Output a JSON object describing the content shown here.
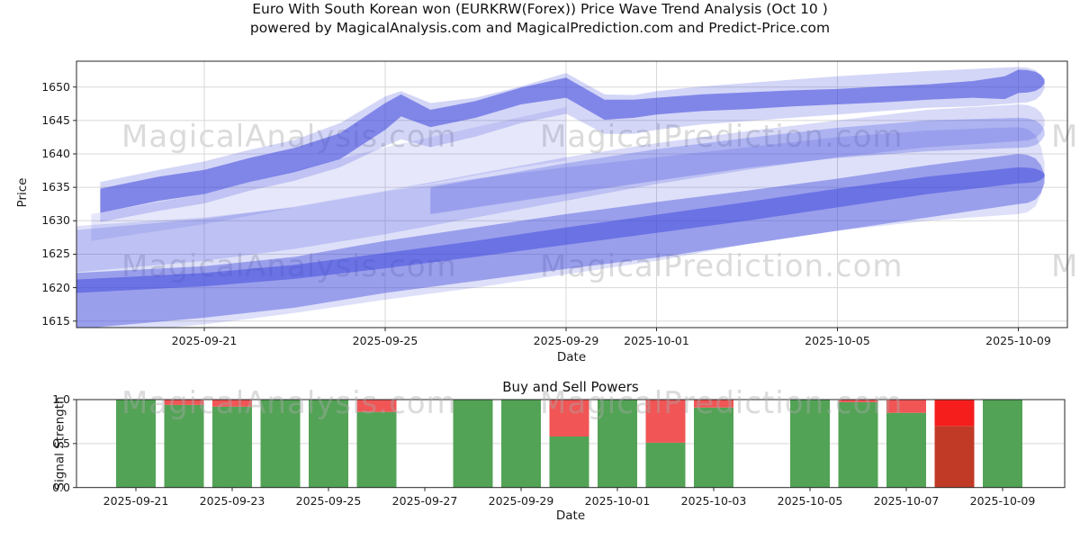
{
  "title_line1": "Euro With South Korean won (EURKRW(Forex)) Price Wave Trend Analysis (Oct 10 )",
  "title_line2": "powered by MagicalAnalysis.com and MagicalPrediction.com and Predict-Price.com",
  "watermarks": {
    "left": "MagicalAnalysis.com",
    "right": "MagicalPrediction.com",
    "partial": "M"
  },
  "colors": {
    "blue": "#3b46dc",
    "green": "#53a356",
    "red": "#f15555",
    "red_bright": "#f61d1d",
    "red_dark": "#c13a26",
    "grid": "#d8d8d8",
    "spine": "#262626",
    "watermark": "#aaaaaa"
  },
  "chart_data": [
    {
      "type": "area",
      "title": "",
      "ylabel": "Price",
      "xlabel": "Date",
      "ylim": [
        1613,
        1654
      ],
      "yticks": [
        "1615",
        "1620",
        "1625",
        "1630",
        "1635",
        "1640",
        "1645",
        "1650"
      ],
      "ytick_values": [
        1615,
        1620,
        1625,
        1630,
        1635,
        1640,
        1645,
        1650
      ],
      "xticks": [
        {
          "label": "2025-09-21",
          "d": 0
        },
        {
          "label": "2025-09-25",
          "d": 4
        },
        {
          "label": "2025-09-29",
          "d": 8
        },
        {
          "label": "2025-10-01",
          "d": 10
        },
        {
          "label": "2025-10-05",
          "d": 14
        },
        {
          "label": "2025-10-09",
          "d": 18
        }
      ],
      "grid": true,
      "note": "d = days since 2025-09-21; bands are [d, low, high] price envelopes",
      "bands": [
        {
          "name": "lower-halo",
          "opacity": 0.17,
          "cap": true,
          "points": [
            [
              -2.84,
              1612.8,
              1629.2
            ],
            [
              0,
              1614.5,
              1630.5
            ],
            [
              2,
              1616.2,
              1632
            ],
            [
              4,
              1618.2,
              1634.4
            ],
            [
              6,
              1620,
              1636.3
            ],
            [
              8,
              1622,
              1638
            ],
            [
              10,
              1624,
              1639.5
            ],
            [
              12,
              1626.5,
              1641
            ],
            [
              14,
              1628.5,
              1642.5
            ],
            [
              16,
              1630,
              1643.5
            ],
            [
              18,
              1631,
              1644
            ]
          ]
        },
        {
          "name": "lower-core",
          "opacity": 0.42,
          "cap": true,
          "points": [
            [
              -2.84,
              1613.8,
              1622.2
            ],
            [
              0,
              1615.5,
              1623.2
            ],
            [
              2,
              1617,
              1624.6
            ],
            [
              4,
              1619.2,
              1627
            ],
            [
              6,
              1621,
              1629
            ],
            [
              8,
              1622.8,
              1631
            ],
            [
              10,
              1624.5,
              1632.8
            ],
            [
              12,
              1626.5,
              1634.5
            ],
            [
              14,
              1628.5,
              1636.3
            ],
            [
              16,
              1630.5,
              1638.3
            ],
            [
              18,
              1632.5,
              1640
            ]
          ]
        },
        {
          "name": "lower-dark-stripe",
          "opacity": 0.5,
          "cap": true,
          "points": [
            [
              -2.84,
              1619.2,
              1621.2
            ],
            [
              0,
              1620.2,
              1622.2
            ],
            [
              2,
              1621.3,
              1623.4
            ],
            [
              4,
              1622.9,
              1625.2
            ],
            [
              6,
              1624.6,
              1627
            ],
            [
              8,
              1626.4,
              1629
            ],
            [
              10,
              1628.2,
              1630.9
            ],
            [
              12,
              1630,
              1632.8
            ],
            [
              14,
              1632,
              1634.8
            ],
            [
              16,
              1634,
              1636.6
            ],
            [
              18,
              1635.6,
              1638
            ]
          ]
        },
        {
          "name": "middle-light",
          "opacity": 0.2,
          "cap": true,
          "points": [
            [
              -2.84,
              1622.3,
              1628.6
            ],
            [
              0,
              1624,
              1630.3
            ],
            [
              2,
              1625.8,
              1632.1
            ],
            [
              4,
              1628,
              1634.5
            ],
            [
              6,
              1630.5,
              1637
            ],
            [
              8,
              1633,
              1639.5
            ],
            [
              10,
              1635.5,
              1641.6
            ],
            [
              12,
              1637.6,
              1643.4
            ],
            [
              14,
              1639.5,
              1645
            ],
            [
              16,
              1641,
              1646.6
            ],
            [
              18,
              1641.9,
              1647.4
            ]
          ]
        },
        {
          "name": "middle-medium",
          "opacity": 0.27,
          "cap": true,
          "points": [
            [
              5,
              1631,
              1635
            ],
            [
              6,
              1632,
              1636.2
            ],
            [
              8,
              1634,
              1638.6
            ],
            [
              10,
              1636,
              1640.7
            ],
            [
              12,
              1637.9,
              1642.4
            ],
            [
              14,
              1639.4,
              1643.9
            ],
            [
              16,
              1640.4,
              1645
            ],
            [
              18,
              1640.9,
              1645.4
            ]
          ]
        },
        {
          "name": "weave-light",
          "opacity": 0.13,
          "cap": false,
          "points": [
            [
              -2.5,
              1627,
              1631
            ],
            [
              0,
              1629.5,
              1634
            ],
            [
              2,
              1632,
              1637.5
            ],
            [
              4,
              1634.5,
              1641
            ],
            [
              5,
              1635.5,
              1642.5
            ],
            [
              6,
              1636.8,
              1644
            ],
            [
              7,
              1638,
              1645.5
            ],
            [
              8,
              1639,
              1647
            ]
          ]
        },
        {
          "name": "upper-halo",
          "opacity": 0.22,
          "cap": true,
          "points": [
            [
              -2.3,
              1629.8,
              1635.8
            ],
            [
              -1,
              1631.5,
              1637.6
            ],
            [
              0,
              1632.6,
              1638.9
            ],
            [
              1,
              1634.5,
              1640.6
            ],
            [
              2,
              1636,
              1642.1
            ],
            [
              3,
              1638,
              1644.6
            ],
            [
              4,
              1641.2,
              1648.6
            ],
            [
              4.35,
              1642.2,
              1649.4
            ],
            [
              5,
              1641,
              1647.6
            ],
            [
              6,
              1642.6,
              1648.4
            ],
            [
              7,
              1644.6,
              1650.1
            ],
            [
              8,
              1646,
              1652.1
            ],
            [
              8.85,
              1643,
              1648.9
            ],
            [
              9.5,
              1643,
              1648.8
            ],
            [
              10,
              1643.6,
              1649.4
            ],
            [
              11,
              1644.4,
              1650.1
            ],
            [
              12,
              1644.9,
              1650.6
            ],
            [
              13,
              1645.4,
              1651.1
            ],
            [
              14,
              1645.9,
              1651.6
            ],
            [
              15,
              1646.4,
              1652
            ],
            [
              16,
              1646.9,
              1652.4
            ],
            [
              17,
              1647.1,
              1652.7
            ],
            [
              18,
              1647.6,
              1653
            ]
          ]
        },
        {
          "name": "upper-core",
          "opacity": 0.55,
          "cap": true,
          "points": [
            [
              -2.3,
              1631.2,
              1634.8
            ],
            [
              -1,
              1633,
              1636.6
            ],
            [
              0,
              1634,
              1637.6
            ],
            [
              1,
              1635.8,
              1639.4
            ],
            [
              2,
              1637.3,
              1640.9
            ],
            [
              3,
              1639.2,
              1643.1
            ],
            [
              4,
              1643.6,
              1647.6
            ],
            [
              4.35,
              1645.6,
              1648.9
            ],
            [
              5,
              1644,
              1646.6
            ],
            [
              6,
              1645.4,
              1647.9
            ],
            [
              7,
              1647.4,
              1649.9
            ],
            [
              8,
              1648.4,
              1651.4
            ],
            [
              8.85,
              1645.1,
              1648.1
            ],
            [
              9.5,
              1645.4,
              1648.1
            ],
            [
              10,
              1645.9,
              1648.4
            ],
            [
              11,
              1646.4,
              1648.9
            ],
            [
              12,
              1646.7,
              1649.2
            ],
            [
              13,
              1647.1,
              1649.5
            ],
            [
              14,
              1647.4,
              1649.7
            ],
            [
              15,
              1647.7,
              1650.1
            ],
            [
              16,
              1648.1,
              1650.4
            ],
            [
              17,
              1648.4,
              1650.9
            ],
            [
              17.7,
              1648.2,
              1651.6
            ],
            [
              18,
              1649.1,
              1652.6
            ]
          ]
        }
      ]
    },
    {
      "type": "bar",
      "title": "Buy and Sell Powers",
      "ylabel": "Signal Strength",
      "xlabel": "Date",
      "ylim": [
        0,
        1
      ],
      "yticks": [
        "0.0",
        "0.5",
        "1.0"
      ],
      "ytick_values": [
        0,
        0.5,
        1
      ],
      "xticks": [
        {
          "label": "2025-09-21",
          "d": 0
        },
        {
          "label": "2025-09-23",
          "d": 2
        },
        {
          "label": "2025-09-25",
          "d": 4
        },
        {
          "label": "2025-09-27",
          "d": 6
        },
        {
          "label": "2025-09-29",
          "d": 8
        },
        {
          "label": "2025-10-01",
          "d": 10
        },
        {
          "label": "2025-10-03",
          "d": 12
        },
        {
          "label": "2025-10-05",
          "d": 14
        },
        {
          "label": "2025-10-07",
          "d": 16
        },
        {
          "label": "2025-10-09",
          "d": 18
        }
      ],
      "bars": [
        {
          "date": "2025-09-21",
          "d": 0,
          "segments": [
            {
              "color_key": "green",
              "value": 1.0
            }
          ]
        },
        {
          "date": "2025-09-22",
          "d": 1,
          "segments": [
            {
              "color_key": "green",
              "value": 0.94
            },
            {
              "color_key": "red",
              "value": 0.06
            }
          ]
        },
        {
          "date": "2025-09-23",
          "d": 2,
          "segments": [
            {
              "color_key": "green",
              "value": 0.92
            },
            {
              "color_key": "red",
              "value": 0.08
            }
          ]
        },
        {
          "date": "2025-09-24",
          "d": 3,
          "segments": [
            {
              "color_key": "green",
              "value": 1.0
            }
          ]
        },
        {
          "date": "2025-09-25",
          "d": 4,
          "segments": [
            {
              "color_key": "green",
              "value": 1.0
            }
          ]
        },
        {
          "date": "2025-09-26",
          "d": 5,
          "segments": [
            {
              "color_key": "green",
              "value": 0.86
            },
            {
              "color_key": "red",
              "value": 0.14
            }
          ]
        },
        {
          "date": "2025-09-28",
          "d": 7,
          "segments": [
            {
              "color_key": "green",
              "value": 1.0
            }
          ]
        },
        {
          "date": "2025-09-29",
          "d": 8,
          "segments": [
            {
              "color_key": "green",
              "value": 1.0
            }
          ]
        },
        {
          "date": "2025-09-30",
          "d": 9,
          "segments": [
            {
              "color_key": "green",
              "value": 0.58
            },
            {
              "color_key": "red",
              "value": 0.42
            }
          ]
        },
        {
          "date": "2025-10-01",
          "d": 10,
          "segments": [
            {
              "color_key": "green",
              "value": 1.0
            }
          ]
        },
        {
          "date": "2025-10-02",
          "d": 11,
          "segments": [
            {
              "color_key": "green",
              "value": 0.51
            },
            {
              "color_key": "red",
              "value": 0.49
            }
          ]
        },
        {
          "date": "2025-10-03",
          "d": 12,
          "segments": [
            {
              "color_key": "green",
              "value": 0.91
            },
            {
              "color_key": "red",
              "value": 0.09
            }
          ]
        },
        {
          "date": "2025-10-05",
          "d": 14,
          "segments": [
            {
              "color_key": "green",
              "value": 1.0
            }
          ]
        },
        {
          "date": "2025-10-06",
          "d": 15,
          "segments": [
            {
              "color_key": "green",
              "value": 0.97
            },
            {
              "color_key": "red",
              "value": 0.03
            }
          ]
        },
        {
          "date": "2025-10-07",
          "d": 16,
          "segments": [
            {
              "color_key": "green",
              "value": 0.85
            },
            {
              "color_key": "red",
              "value": 0.15
            }
          ]
        },
        {
          "date": "2025-10-08",
          "d": 17,
          "segments": [
            {
              "color_key": "red_dark",
              "value": 0.7
            },
            {
              "color_key": "red_bright",
              "value": 0.3
            }
          ]
        },
        {
          "date": "2025-10-09",
          "d": 18,
          "segments": [
            {
              "color_key": "green",
              "value": 1.0
            }
          ]
        }
      ]
    }
  ]
}
